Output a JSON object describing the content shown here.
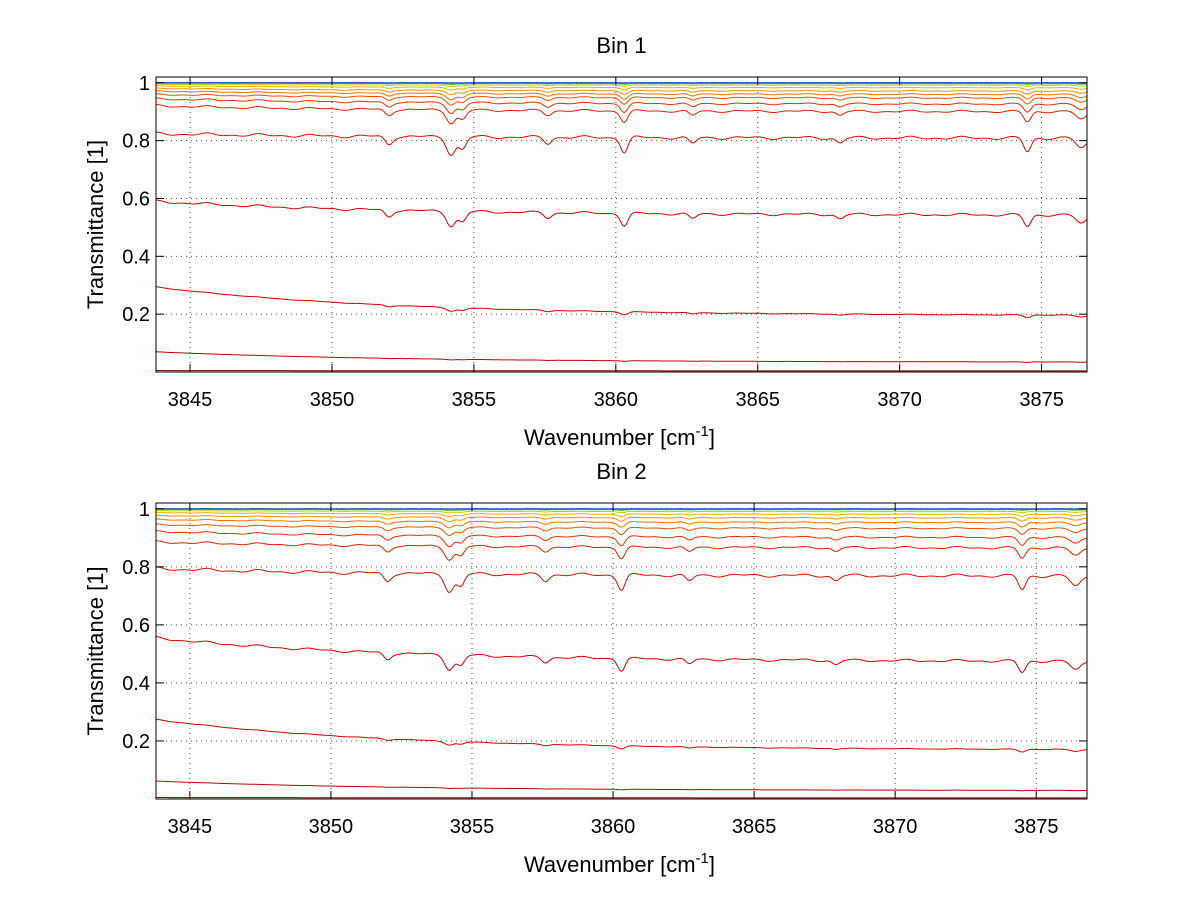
{
  "chart_data": [
    {
      "type": "line",
      "title": "Bin 1",
      "xlabel": "Wavenumber [cm",
      "xlabel_sup": "-1",
      "xlabel_end": "]",
      "ylabel": "Transmittance [1]",
      "xlim": [
        3843.8,
        3876.6
      ],
      "ylim": [
        0.0,
        1.02
      ],
      "xticks": [
        3845,
        3850,
        3855,
        3860,
        3865,
        3870,
        3875
      ],
      "xtick_labels": [
        "3845",
        "3850",
        "3855",
        "3860",
        "3865",
        "3870",
        "3875"
      ],
      "yticks": [
        0.2,
        0.4,
        0.6,
        0.8,
        1.0
      ],
      "ytick_labels": [
        "0.2",
        "0.4",
        "0.6",
        "0.8",
        "1"
      ],
      "grid": true,
      "series": [
        {
          "color": "#8b0000",
          "start": 0.005,
          "end": 0.004,
          "depth": 0.0
        },
        {
          "color": "#c40000",
          "start": 0.07,
          "end": 0.035,
          "depth": 0.002
        },
        {
          "color": "#d00000",
          "start": 0.295,
          "end": 0.198,
          "depth": 0.012
        },
        {
          "color": "#d00000",
          "start": 0.595,
          "end": 0.548,
          "depth": 0.05
        },
        {
          "color": "#d01000",
          "start": 0.83,
          "end": 0.815,
          "depth": 0.06
        },
        {
          "color": "#d82000",
          "start": 0.925,
          "end": 0.905,
          "depth": 0.045
        },
        {
          "color": "#e03000",
          "start": 0.948,
          "end": 0.93,
          "depth": 0.035
        },
        {
          "color": "#e85000",
          "start": 0.962,
          "end": 0.95,
          "depth": 0.026
        },
        {
          "color": "#f07000",
          "start": 0.973,
          "end": 0.962,
          "depth": 0.02
        },
        {
          "color": "#f09000",
          "start": 0.982,
          "end": 0.973,
          "depth": 0.014
        },
        {
          "color": "#e8b000",
          "start": 0.99,
          "end": 0.984,
          "depth": 0.009
        },
        {
          "color": "#c8c800",
          "start": 0.995,
          "end": 0.992,
          "depth": 0.005
        },
        {
          "color": "#60c040",
          "start": 0.999,
          "end": 0.997,
          "depth": 0.003
        },
        {
          "color": "#00a0c0",
          "start": 1.0,
          "end": 0.999,
          "depth": 0.001
        },
        {
          "color": "#0030c0",
          "start": 1.0,
          "end": 1.0,
          "depth": 0.0005
        }
      ]
    },
    {
      "type": "line",
      "title": "Bin 2",
      "xlabel": "Wavenumber [cm",
      "xlabel_sup": "-1",
      "xlabel_end": "]",
      "ylabel": "Transmittance [1]",
      "xlim": [
        3843.8,
        3876.8
      ],
      "ylim": [
        0.0,
        1.02
      ],
      "xticks": [
        3845,
        3850,
        3855,
        3860,
        3865,
        3870,
        3875
      ],
      "xtick_labels": [
        "3845",
        "3850",
        "3855",
        "3860",
        "3865",
        "3870",
        "3875"
      ],
      "yticks": [
        0.2,
        0.4,
        0.6,
        0.8,
        1.0
      ],
      "ytick_labels": [
        "0.2",
        "0.4",
        "0.6",
        "0.8",
        "1"
      ],
      "grid": true,
      "series": [
        {
          "color": "#8b0000",
          "start": 0.005,
          "end": 0.004,
          "depth": 0.0
        },
        {
          "color": "#c40000",
          "start": 0.062,
          "end": 0.03,
          "depth": 0.002
        },
        {
          "color": "#d00000",
          "start": 0.275,
          "end": 0.172,
          "depth": 0.012
        },
        {
          "color": "#d00000",
          "start": 0.56,
          "end": 0.48,
          "depth": 0.05
        },
        {
          "color": "#d01000",
          "start": 0.8,
          "end": 0.775,
          "depth": 0.06
        },
        {
          "color": "#d82000",
          "start": 0.89,
          "end": 0.87,
          "depth": 0.045
        },
        {
          "color": "#e03000",
          "start": 0.925,
          "end": 0.905,
          "depth": 0.035
        },
        {
          "color": "#e85000",
          "start": 0.948,
          "end": 0.935,
          "depth": 0.026
        },
        {
          "color": "#f07000",
          "start": 0.965,
          "end": 0.955,
          "depth": 0.02
        },
        {
          "color": "#f09000",
          "start": 0.978,
          "end": 0.97,
          "depth": 0.014
        },
        {
          "color": "#e8b000",
          "start": 0.988,
          "end": 0.982,
          "depth": 0.009
        },
        {
          "color": "#c8c800",
          "start": 0.994,
          "end": 0.991,
          "depth": 0.005
        },
        {
          "color": "#60c040",
          "start": 0.998,
          "end": 0.997,
          "depth": 0.003
        },
        {
          "color": "#00a0c0",
          "start": 1.0,
          "end": 0.999,
          "depth": 0.001
        },
        {
          "color": "#0030c0",
          "start": 1.0,
          "end": 1.0,
          "depth": 0.0005
        }
      ]
    }
  ]
}
